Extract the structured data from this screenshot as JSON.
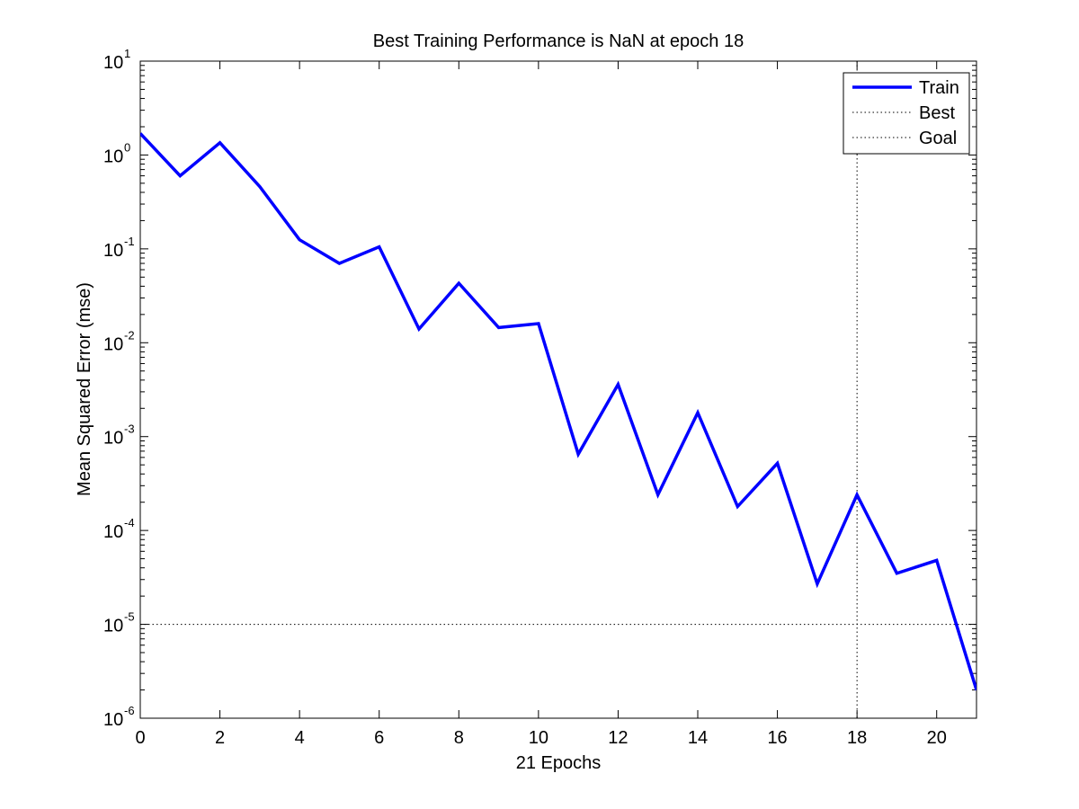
{
  "chart_data": {
    "type": "line",
    "title": "Best Training Performance is NaN at epoch 18",
    "xlabel": "21 Epochs",
    "ylabel": "Mean Squared Error  (mse)",
    "xlim": [
      0,
      21
    ],
    "ylim": [
      1e-06,
      10
    ],
    "yscale": "log",
    "grid": false,
    "legend_position": "top-right",
    "x_ticks": [
      0,
      2,
      4,
      6,
      8,
      10,
      12,
      14,
      16,
      18,
      20
    ],
    "x_tick_labels": [
      "0",
      "2",
      "4",
      "6",
      "8",
      "10",
      "12",
      "14",
      "16",
      "18",
      "20"
    ],
    "y_tick_exponents": [
      -6,
      -5,
      -4,
      -3,
      -2,
      -1,
      0,
      1
    ],
    "y_tick_base": "10",
    "y_tick_exponent_labels": [
      "-6",
      "-5",
      "-4",
      "-3",
      "-2",
      "-1",
      "0",
      "1"
    ],
    "series": [
      {
        "name": "Train",
        "color": "#0000ff",
        "style": "solid",
        "x": [
          0,
          1,
          2,
          3,
          4,
          5,
          6,
          7,
          8,
          9,
          10,
          11,
          12,
          13,
          14,
          15,
          16,
          17,
          18,
          19,
          20,
          21
        ],
        "y": [
          1.7,
          0.6,
          1.35,
          0.46,
          0.125,
          0.07,
          0.105,
          0.014,
          0.043,
          0.0145,
          0.016,
          0.00065,
          0.0036,
          0.00024,
          0.0018,
          0.00018,
          0.00052,
          2.7e-05,
          0.00024,
          3.5e-05,
          4.8e-05,
          2e-06
        ]
      },
      {
        "name": "Best",
        "color": "#000000",
        "style": "dotted",
        "x_value": 18
      },
      {
        "name": "Goal",
        "color": "#000000",
        "style": "dotted",
        "y_value": 1e-05
      }
    ]
  }
}
